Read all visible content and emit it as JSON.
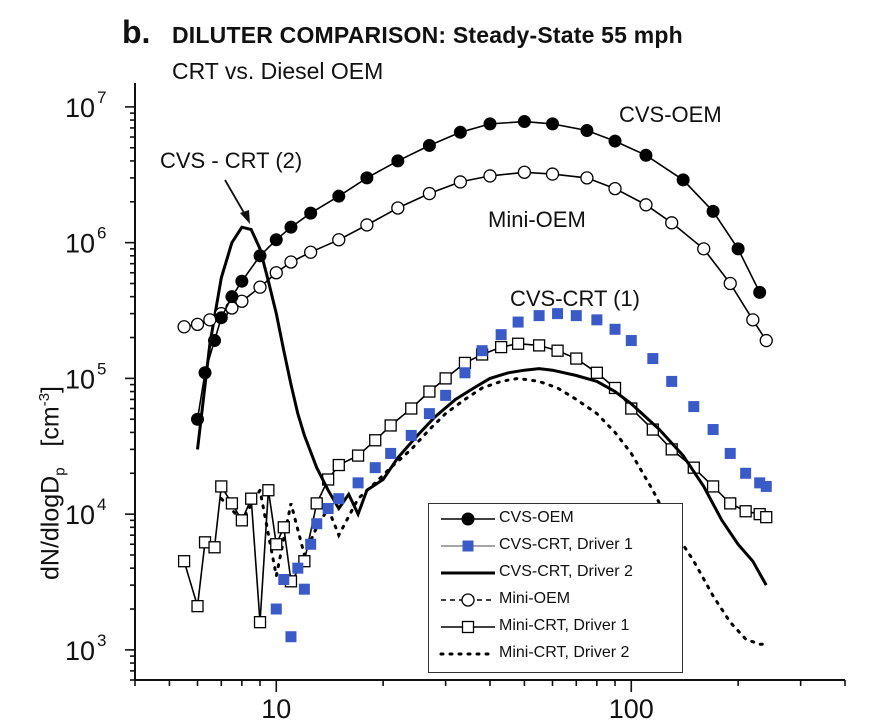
{
  "panel_letter": "b.",
  "title": "DILUTER COMPARISON:  Steady-State 55 mph",
  "subtitle": "CRT vs. Diesel OEM",
  "ylabel_main": "dN/dlogD",
  "ylabel_sub": "p",
  "ylabel_unit_open": "[cm",
  "ylabel_unit_sup": "-3",
  "ylabel_unit_close": "]",
  "annotations": {
    "cvs_crt2": "CVS - CRT (2)",
    "cvs_oem": "CVS-OEM",
    "mini_oem": "Mini-OEM",
    "cvs_crt1": "CVS-CRT (1)"
  },
  "chart_data": {
    "type": "scatter",
    "x_scale": "log",
    "y_scale": "log",
    "xlim": [
      4,
      400
    ],
    "ylim": [
      600,
      15000000
    ],
    "x_ticks": [
      10,
      100
    ],
    "y_ticks": [
      1000,
      10000,
      100000,
      1000000,
      10000000
    ],
    "x_tick_labels": [
      "10",
      "100"
    ],
    "y_tick_labels": [
      {
        "base": "10",
        "exp": "3"
      },
      {
        "base": "10",
        "exp": "4"
      },
      {
        "base": "10",
        "exp": "5"
      },
      {
        "base": "10",
        "exp": "6"
      },
      {
        "base": "10",
        "exp": "7"
      }
    ],
    "legend_position": "bottom-right",
    "series": [
      {
        "name": "CVS-OEM",
        "color": "#000000",
        "marker": "filled-circle",
        "line": "solid",
        "x": [
          6,
          6.3,
          6.7,
          7,
          7.5,
          8,
          9,
          10,
          11,
          12.5,
          15,
          18,
          22,
          27,
          33,
          40,
          50,
          60,
          75,
          90,
          110,
          140,
          170,
          200,
          230
        ],
        "y": [
          50000,
          110000,
          190000,
          280000,
          400000,
          520000,
          800000,
          1050000,
          1300000,
          1650000,
          2200000,
          3000000,
          4000000,
          5200000,
          6500000,
          7500000,
          7800000,
          7500000,
          6700000,
          5600000,
          4400000,
          2900000,
          1700000,
          900000,
          430000
        ]
      },
      {
        "name": "Mini-OEM",
        "color": "#000000",
        "marker": "open-circle",
        "line": "solid",
        "x": [
          5.5,
          6,
          6.5,
          7,
          7.5,
          8,
          9,
          10,
          11,
          12.5,
          15,
          18,
          22,
          27,
          33,
          40,
          50,
          60,
          75,
          90,
          110,
          130,
          160,
          190,
          220,
          240
        ],
        "y": [
          240000,
          250000,
          270000,
          300000,
          330000,
          370000,
          470000,
          600000,
          720000,
          850000,
          1050000,
          1350000,
          1800000,
          2300000,
          2800000,
          3100000,
          3300000,
          3200000,
          3000000,
          2500000,
          1900000,
          1400000,
          900000,
          500000,
          270000,
          190000
        ]
      },
      {
        "name": "CVS-CRT, Driver 1",
        "color": "#3a5bc7",
        "marker": "filled-square",
        "line": "none",
        "x": [
          10,
          10.5,
          11,
          11.5,
          12,
          12.5,
          13,
          14,
          15,
          17,
          19,
          21,
          24,
          27,
          30,
          34,
          38,
          43,
          48,
          55,
          62,
          70,
          80,
          90,
          100,
          115,
          130,
          150,
          170,
          190,
          210,
          230,
          240
        ],
        "y": [
          2000,
          3300,
          1250,
          4000,
          2800,
          6000,
          8500,
          11000,
          13000,
          17000,
          22000,
          28000,
          38000,
          55000,
          75000,
          110000,
          160000,
          210000,
          260000,
          290000,
          300000,
          290000,
          270000,
          230000,
          190000,
          140000,
          95000,
          62000,
          42000,
          28000,
          20000,
          17000,
          16000
        ]
      },
      {
        "name": "CVS-CRT, Driver 2",
        "color": "#000000",
        "marker": "none",
        "line": "solid",
        "x": [
          6,
          6.5,
          7,
          7.5,
          8,
          8.5,
          9,
          9.5,
          10,
          10.5,
          11,
          11.5,
          12,
          13,
          14,
          15,
          16,
          17,
          18,
          20,
          22,
          25,
          28,
          32,
          36,
          40,
          45,
          50,
          55,
          60,
          70,
          80,
          90,
          100,
          120,
          140,
          160,
          180,
          200,
          220,
          240
        ],
        "y": [
          30000,
          180000,
          550000,
          1000000,
          1300000,
          1250000,
          900000,
          520000,
          300000,
          160000,
          90000,
          55000,
          38000,
          22000,
          15000,
          11000,
          14000,
          10000,
          15000,
          18000,
          26000,
          38000,
          52000,
          70000,
          85000,
          100000,
          110000,
          115000,
          118000,
          115000,
          105000,
          95000,
          80000,
          65000,
          42000,
          27000,
          16000,
          9000,
          6000,
          4500,
          3000
        ]
      },
      {
        "name": "Mini-CRT, Driver 1",
        "color": "#000000",
        "marker": "open-square",
        "line": "solid",
        "x": [
          5.5,
          6,
          6.3,
          6.7,
          7,
          7.5,
          8,
          8.5,
          9,
          9.5,
          10,
          10.5,
          11,
          12,
          13,
          14,
          15,
          17,
          19,
          21,
          24,
          27,
          30,
          34,
          38,
          43,
          48,
          55,
          62,
          70,
          80,
          90,
          100,
          115,
          130,
          150,
          170,
          190,
          210,
          230,
          240
        ],
        "y": [
          4500,
          2100,
          6200,
          5700,
          16000,
          12000,
          9000,
          13000,
          1600,
          15000,
          6000,
          8000,
          3200,
          4500,
          12000,
          18000,
          23000,
          27000,
          35000,
          45000,
          60000,
          80000,
          100000,
          130000,
          150000,
          170000,
          180000,
          175000,
          160000,
          140000,
          110000,
          85000,
          60000,
          42000,
          30000,
          22000,
          16000,
          12000,
          10500,
          10000,
          9500
        ]
      },
      {
        "name": "Mini-CRT, Driver 2",
        "color": "#000000",
        "marker": "none",
        "line": "dotted",
        "x": [
          7,
          8,
          9,
          10,
          11,
          12,
          13,
          14,
          15,
          17,
          19,
          21,
          24,
          27,
          30,
          34,
          38,
          43,
          48,
          55,
          62,
          70,
          80,
          90,
          100,
          115,
          130,
          150,
          170,
          190,
          210,
          230,
          240
        ],
        "y": [
          13000,
          9000,
          15000,
          3500,
          12000,
          5000,
          8000,
          11000,
          7000,
          13000,
          17000,
          22000,
          30000,
          42000,
          55000,
          70000,
          85000,
          95000,
          100000,
          95000,
          85000,
          70000,
          55000,
          40000,
          28000,
          15000,
          8000,
          4500,
          2500,
          1600,
          1200,
          1100,
          1100
        ]
      }
    ]
  }
}
